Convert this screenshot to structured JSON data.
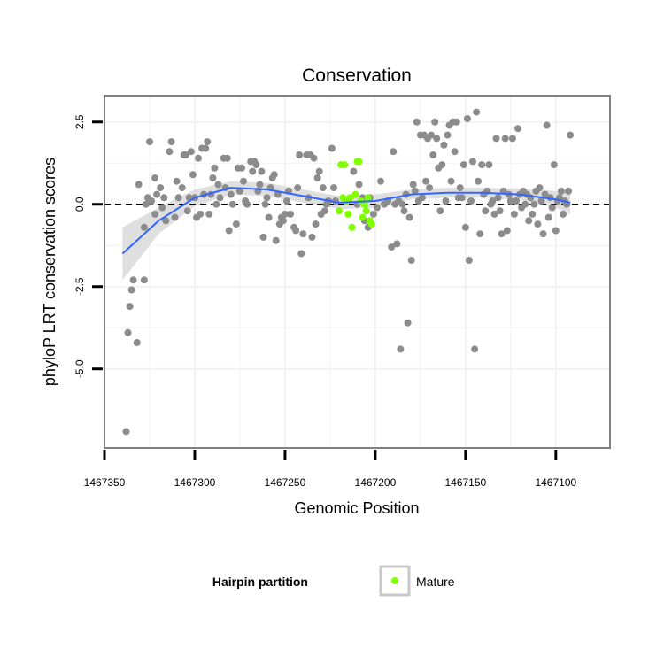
{
  "chart_data": {
    "type": "scatter",
    "title": "Conservation",
    "xlabel": "Genomic Position",
    "ylabel": "phyloP LRT conservation scores",
    "xlim": [
      1467350,
      1467070
    ],
    "x_reversed": true,
    "ylim": [
      -7.4,
      3.3
    ],
    "x_ticks": [
      1467350,
      1467300,
      1467250,
      1467200,
      1467150,
      1467100
    ],
    "x_tick_labels": [
      "1467350",
      "1467300",
      "1467250",
      "1467200",
      "1467150",
      "1467100"
    ],
    "y_ticks": [
      -5.0,
      -2.5,
      0.0,
      2.5
    ],
    "y_tick_labels": [
      "-5.0",
      "-2.5",
      "0.0",
      "2.5"
    ],
    "grid": true,
    "reference_line": {
      "y": 0,
      "style": "dashed",
      "color": "#000000"
    },
    "legend": {
      "title": "Hairpin partition",
      "position": "bottom",
      "entries": [
        {
          "label": "Mature",
          "color": "#7FFF00"
        }
      ]
    },
    "colors": {
      "other": "#8C8C8C",
      "mature": "#7FFF00",
      "smooth": "#3366FF",
      "band": "#D9D9D9",
      "panel": "#FFFFFF",
      "grid": "#F2F2F2",
      "border": "#808080"
    },
    "series": [
      {
        "group": "other",
        "points": [
          [
            1467338,
            -6.9
          ],
          [
            1467337,
            -3.9
          ],
          [
            1467336,
            -3.1
          ],
          [
            1467335,
            -2.6
          ],
          [
            1467334,
            -2.3
          ],
          [
            1467332,
            -4.2
          ],
          [
            1467331,
            0.6
          ],
          [
            1467328,
            -2.3
          ],
          [
            1467328,
            -0.7
          ],
          [
            1467327,
            0.0
          ],
          [
            1467326,
            0.2
          ],
          [
            1467325,
            1.9
          ],
          [
            1467324,
            0.1
          ],
          [
            1467322,
            -0.3
          ],
          [
            1467322,
            0.8
          ],
          [
            1467321,
            0.3
          ],
          [
            1467319,
            0.5
          ],
          [
            1467318,
            -0.1
          ],
          [
            1467317,
            0.2
          ],
          [
            1467316,
            -0.5
          ],
          [
            1467314,
            1.6
          ],
          [
            1467313,
            1.9
          ],
          [
            1467311,
            -0.4
          ],
          [
            1467310,
            0.7
          ],
          [
            1467309,
            0.2
          ],
          [
            1467307,
            0.5
          ],
          [
            1467306,
            1.5
          ],
          [
            1467305,
            1.5
          ],
          [
            1467304,
            -0.2
          ],
          [
            1467303,
            0.2
          ],
          [
            1467302,
            1.6
          ],
          [
            1467301,
            0.9
          ],
          [
            1467300,
            0.2
          ],
          [
            1467299,
            -0.4
          ],
          [
            1467298,
            1.4
          ],
          [
            1467297,
            -0.3
          ],
          [
            1467296,
            1.7
          ],
          [
            1467295,
            0.3
          ],
          [
            1467294,
            1.7
          ],
          [
            1467293,
            1.9
          ],
          [
            1467292,
            -0.3
          ],
          [
            1467291,
            0.3
          ],
          [
            1467290,
            0.8
          ],
          [
            1467289,
            1.1
          ],
          [
            1467288,
            0.0
          ],
          [
            1467287,
            0.6
          ],
          [
            1467286,
            0.2
          ],
          [
            1467284,
            1.4
          ],
          [
            1467283,
            0.5
          ],
          [
            1467282,
            1.4
          ],
          [
            1467281,
            -0.8
          ],
          [
            1467280,
            0.3
          ],
          [
            1467279,
            0.0
          ],
          [
            1467277,
            -0.6
          ],
          [
            1467276,
            1.1
          ],
          [
            1467275,
            0.4
          ],
          [
            1467274,
            1.1
          ],
          [
            1467273,
            0.7
          ],
          [
            1467272,
            0.1
          ],
          [
            1467271,
            0.0
          ],
          [
            1467269,
            1.3
          ],
          [
            1467268,
            1.0
          ],
          [
            1467267,
            1.3
          ],
          [
            1467266,
            1.2
          ],
          [
            1467265,
            0.4
          ],
          [
            1467264,
            0.6
          ],
          [
            1467263,
            1.0
          ],
          [
            1467262,
            -1.0
          ],
          [
            1467261,
            0.0
          ],
          [
            1467260,
            0.2
          ],
          [
            1467259,
            -0.4
          ],
          [
            1467258,
            0.5
          ],
          [
            1467257,
            0.8
          ],
          [
            1467256,
            0.9
          ],
          [
            1467255,
            -1.1
          ],
          [
            1467254,
            0.3
          ],
          [
            1467253,
            -0.6
          ],
          [
            1467252,
            -0.4
          ],
          [
            1467251,
            -0.5
          ],
          [
            1467250,
            -0.3
          ],
          [
            1467249,
            0.1
          ],
          [
            1467248,
            0.4
          ],
          [
            1467247,
            -0.3
          ],
          [
            1467245,
            -0.7
          ],
          [
            1467244,
            -0.8
          ],
          [
            1467243,
            0.5
          ],
          [
            1467242,
            1.5
          ],
          [
            1467241,
            -1.5
          ],
          [
            1467240,
            -0.9
          ],
          [
            1467238,
            1.5
          ],
          [
            1467237,
            0.2
          ],
          [
            1467236,
            1.5
          ],
          [
            1467235,
            -1.0
          ],
          [
            1467234,
            1.4
          ],
          [
            1467233,
            -0.6
          ],
          [
            1467232,
            0.8
          ],
          [
            1467231,
            1.0
          ],
          [
            1467230,
            -0.3
          ],
          [
            1467229,
            0.5
          ],
          [
            1467228,
            -0.2
          ],
          [
            1467227,
            0.0
          ],
          [
            1467226,
            0.1
          ],
          [
            1467224,
            1.7
          ],
          [
            1467223,
            0.5
          ],
          [
            1467222,
            0.1
          ],
          [
            1467212,
            1.0
          ],
          [
            1467210,
            0.0
          ],
          [
            1467209,
            0.6
          ],
          [
            1467207,
            0.2
          ],
          [
            1467206,
            -0.5
          ],
          [
            1467205,
            -0.2
          ],
          [
            1467204,
            -0.7
          ],
          [
            1467203,
            0.2
          ],
          [
            1467201,
            -0.3
          ],
          [
            1467199,
            -0.1
          ],
          [
            1467197,
            0.7
          ],
          [
            1467195,
            0.0
          ],
          [
            1467193,
            0.1
          ],
          [
            1467191,
            -1.3
          ],
          [
            1467190,
            1.6
          ],
          [
            1467189,
            0.0
          ],
          [
            1467188,
            -1.2
          ],
          [
            1467187,
            0.1
          ],
          [
            1467186,
            -4.4
          ],
          [
            1467185,
            0.0
          ],
          [
            1467184,
            -0.2
          ],
          [
            1467183,
            0.3
          ],
          [
            1467182,
            -3.6
          ],
          [
            1467181,
            -0.4
          ],
          [
            1467180,
            -1.7
          ],
          [
            1467179,
            0.6
          ],
          [
            1467178,
            0.4
          ],
          [
            1467177,
            2.5
          ],
          [
            1467176,
            0.1
          ],
          [
            1467175,
            2.1
          ],
          [
            1467174,
            0.2
          ],
          [
            1467173,
            2.1
          ],
          [
            1467172,
            0.7
          ],
          [
            1467171,
            2.0
          ],
          [
            1467170,
            0.5
          ],
          [
            1467169,
            2.1
          ],
          [
            1467168,
            1.5
          ],
          [
            1467167,
            2.5
          ],
          [
            1467166,
            2.0
          ],
          [
            1467165,
            1.1
          ],
          [
            1467164,
            -0.2
          ],
          [
            1467163,
            1.2
          ],
          [
            1467162,
            1.8
          ],
          [
            1467161,
            0.1
          ],
          [
            1467160,
            2.1
          ],
          [
            1467159,
            2.4
          ],
          [
            1467158,
            0.7
          ],
          [
            1467157,
            2.5
          ],
          [
            1467156,
            1.6
          ],
          [
            1467155,
            2.5
          ],
          [
            1467154,
            0.2
          ],
          [
            1467153,
            0.5
          ],
          [
            1467152,
            0.2
          ],
          [
            1467151,
            1.2
          ],
          [
            1467150,
            -0.7
          ],
          [
            1467149,
            2.6
          ],
          [
            1467148,
            -1.7
          ],
          [
            1467147,
            0.1
          ],
          [
            1467146,
            1.3
          ],
          [
            1467145,
            -4.4
          ],
          [
            1467144,
            2.8
          ],
          [
            1467143,
            0.7
          ],
          [
            1467142,
            -0.9
          ],
          [
            1467141,
            1.2
          ],
          [
            1467140,
            0.3
          ],
          [
            1467139,
            -0.2
          ],
          [
            1467138,
            0.4
          ],
          [
            1467137,
            1.2
          ],
          [
            1467136,
            0.0
          ],
          [
            1467135,
            0.1
          ],
          [
            1467134,
            -0.3
          ],
          [
            1467133,
            2.0
          ],
          [
            1467132,
            0.2
          ],
          [
            1467131,
            -0.2
          ],
          [
            1467130,
            -0.9
          ],
          [
            1467129,
            0.4
          ],
          [
            1467128,
            2.0
          ],
          [
            1467127,
            -0.8
          ],
          [
            1467126,
            0.3
          ],
          [
            1467125,
            0.1
          ],
          [
            1467124,
            2.0
          ],
          [
            1467123,
            -0.3
          ],
          [
            1467122,
            0.1
          ],
          [
            1467121,
            2.3
          ],
          [
            1467120,
            0.3
          ],
          [
            1467119,
            -0.1
          ],
          [
            1467118,
            0.4
          ],
          [
            1467117,
            0.0
          ],
          [
            1467116,
            0.3
          ],
          [
            1467115,
            -0.5
          ],
          [
            1467114,
            0.2
          ],
          [
            1467113,
            -0.3
          ],
          [
            1467112,
            0.0
          ],
          [
            1467111,
            0.4
          ],
          [
            1467110,
            -0.6
          ],
          [
            1467109,
            0.5
          ],
          [
            1467108,
            0.1
          ],
          [
            1467107,
            -0.9
          ],
          [
            1467106,
            0.3
          ],
          [
            1467105,
            2.4
          ],
          [
            1467104,
            -0.4
          ],
          [
            1467103,
            0.2
          ],
          [
            1467102,
            -0.1
          ],
          [
            1467101,
            1.2
          ],
          [
            1467100,
            -0.8
          ],
          [
            1467099,
            0.1
          ],
          [
            1467098,
            0.2
          ],
          [
            1467097,
            0.4
          ],
          [
            1467096,
            -0.3
          ],
          [
            1467095,
            0.1
          ],
          [
            1467094,
            0.0
          ],
          [
            1467093,
            0.4
          ],
          [
            1467092,
            2.1
          ]
        ]
      },
      {
        "group": "mature",
        "name": "Mature",
        "points": [
          [
            1467220,
            -0.2
          ],
          [
            1467219,
            1.2
          ],
          [
            1467218,
            0.2
          ],
          [
            1467217,
            1.2
          ],
          [
            1467216,
            0.1
          ],
          [
            1467215,
            -0.3
          ],
          [
            1467214,
            0.2
          ],
          [
            1467213,
            -0.7
          ],
          [
            1467211,
            0.3
          ],
          [
            1467210,
            1.3
          ],
          [
            1467209,
            1.3
          ],
          [
            1467208,
            0.1
          ],
          [
            1467207,
            -0.4
          ],
          [
            1467206,
            0.0
          ],
          [
            1467205,
            -0.2
          ],
          [
            1467204,
            0.2
          ],
          [
            1467203,
            -0.5
          ],
          [
            1467202,
            -0.6
          ]
        ]
      }
    ],
    "smooth": {
      "x": [
        1467340,
        1467320,
        1467300,
        1467280,
        1467260,
        1467240,
        1467220,
        1467200,
        1467180,
        1467160,
        1467140,
        1467120,
        1467100,
        1467092
      ],
      "y": [
        -1.5,
        -0.5,
        0.2,
        0.5,
        0.45,
        0.25,
        0.05,
        0.1,
        0.3,
        0.35,
        0.35,
        0.3,
        0.15,
        0.05
      ],
      "lower": [
        -2.3,
        -0.9,
        -0.05,
        0.3,
        0.25,
        0.05,
        -0.15,
        -0.1,
        0.15,
        0.2,
        0.2,
        0.12,
        -0.1,
        -0.3
      ],
      "upper": [
        -0.7,
        -0.1,
        0.45,
        0.7,
        0.65,
        0.45,
        0.25,
        0.3,
        0.45,
        0.5,
        0.5,
        0.48,
        0.4,
        0.4
      ]
    }
  }
}
